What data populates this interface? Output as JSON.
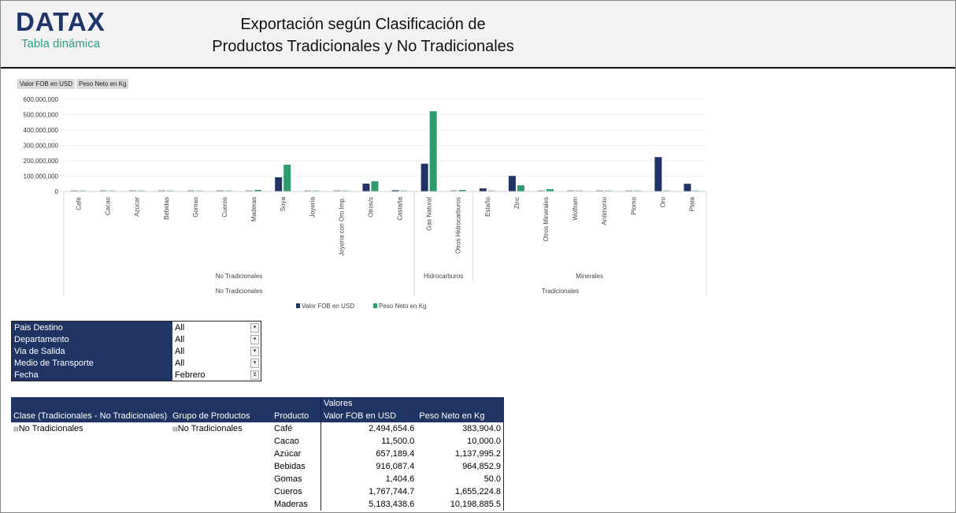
{
  "header": {
    "logo": "DATAX",
    "logo_sub": "Tabla dinámica",
    "title_line1": "Exportación según Clasificación de",
    "title_line2": "Productos Tradicionales y No Tradicionales"
  },
  "field_buttons": [
    "Valor FOB en USD",
    "Peso Neto en Kg"
  ],
  "colors": {
    "series1": "#203464",
    "series2": "#2e9b6c",
    "header_bg": "#203464"
  },
  "chart_data": {
    "type": "bar",
    "ylim": [
      0,
      600000000
    ],
    "yticks": [
      "0",
      "100,000,000",
      "200,000,000",
      "300,000,000",
      "400,000,000",
      "500,000,000",
      "600,000,000"
    ],
    "grid": true,
    "legend": "bottom",
    "categories": [
      "Café",
      "Cacao",
      "Azúcar",
      "Bebidas",
      "Gomas",
      "Cueros",
      "Maderas",
      "Soya",
      "Joyería",
      "Joyería con Oro Imp.",
      "Otros/s",
      "Castaña",
      "Gas Natural",
      "Otros Hidrocarburos",
      "Estaño",
      "Zinc",
      "Otros Minerales",
      "Wolfram",
      "Antimonio",
      "Plomo",
      "Oro",
      "Plata"
    ],
    "groups": [
      {
        "label": "No Tradicionales",
        "count": 12
      },
      {
        "label": "Hidrocarburos",
        "count": 2
      },
      {
        "label": "Minerales",
        "count": 8
      }
    ],
    "classes": [
      {
        "label": "No Tradicionales",
        "count": 12
      },
      {
        "label": "Tradicionales",
        "count": 10
      }
    ],
    "series": [
      {
        "name": "Valor FOB en USD",
        "values": [
          2494654.6,
          11500,
          657189.4,
          916087.4,
          1404.6,
          1767744.7,
          5183438.6,
          92000000,
          1000000,
          1000000,
          51000000,
          8000000,
          181000000,
          6000000,
          20000000,
          101000000,
          7000000,
          2000000,
          2000000,
          5000000,
          224000000,
          50000000
        ]
      },
      {
        "name": "Peso Neto en Kg",
        "values": [
          383904,
          10000,
          1137995.2,
          964852.9,
          50,
          1655224.8,
          10198885.5,
          174000000,
          0,
          0,
          66000000,
          3000000,
          522000000,
          10000000,
          1000000,
          40000000,
          15000000,
          2000000,
          2000000,
          2000000,
          2000000,
          2000000
        ]
      }
    ]
  },
  "filters": [
    {
      "label": "Pais Destino",
      "value": "All",
      "icon": "dropdown-icon"
    },
    {
      "label": "Departamento",
      "value": "All",
      "icon": "dropdown-icon"
    },
    {
      "label": "Via de Salida",
      "value": "All",
      "icon": "dropdown-icon"
    },
    {
      "label": "Medio de Transporte",
      "value": "All",
      "icon": "dropdown-icon"
    },
    {
      "label": "Fecha",
      "value": "Febrero",
      "icon": "filter-icon"
    }
  ],
  "pivot": {
    "values_label": "Valores",
    "headers": [
      "Clase (Tradicionales - No Tradicionales)",
      "Grupo de Productos",
      "Producto",
      "Valor FOB en USD",
      "Peso Neto en Kg"
    ],
    "class": "No Tradicionales",
    "group": "No Tradicionales",
    "rows": [
      {
        "product": "Café",
        "fob": "2,494,654.6",
        "peso": "383,904.0"
      },
      {
        "product": "Cacao",
        "fob": "11,500.0",
        "peso": "10,000.0"
      },
      {
        "product": "Azúcar",
        "fob": "657,189.4",
        "peso": "1,137,995.2"
      },
      {
        "product": "Bebidas",
        "fob": "916,087.4",
        "peso": "964,852.9"
      },
      {
        "product": "Gomas",
        "fob": "1,404.6",
        "peso": "50.0"
      },
      {
        "product": "Cueros",
        "fob": "1,767,744.7",
        "peso": "1,655,224.8"
      },
      {
        "product": "Maderas",
        "fob": "5,183,438.6",
        "peso": "10,198,885.5"
      }
    ]
  }
}
